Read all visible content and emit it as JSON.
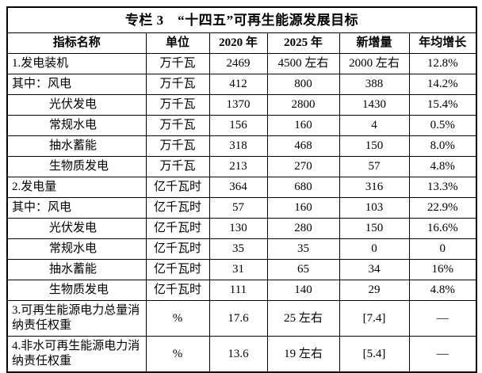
{
  "table": {
    "title": "专栏 3　“十四五”可再生能源发展目标",
    "headers": {
      "name": "指标名称",
      "unit": "单位",
      "y2020": "2020 年",
      "y2025": "2025 年",
      "added": "新增量",
      "growth": "年均增长"
    },
    "rows": [
      {
        "name": "1.发电装机",
        "unit": "万千瓦",
        "y2020": "2469",
        "y2025": "4500 左右",
        "added": "2000 左右",
        "growth": "12.8%"
      },
      {
        "name": "其中：风电",
        "unit": "万千瓦",
        "y2020": "412",
        "y2025": "800",
        "added": "388",
        "growth": "14.2%"
      },
      {
        "name": "光伏发电",
        "unit": "万千瓦",
        "y2020": "1370",
        "y2025": "2800",
        "added": "1430",
        "growth": "15.4%"
      },
      {
        "name": "常规水电",
        "unit": "万千瓦",
        "y2020": "156",
        "y2025": "160",
        "added": "4",
        "growth": "0.5%"
      },
      {
        "name": "抽水蓄能",
        "unit": "万千瓦",
        "y2020": "318",
        "y2025": "468",
        "added": "150",
        "growth": "8.0%"
      },
      {
        "name": "生物质发电",
        "unit": "万千瓦",
        "y2020": "213",
        "y2025": "270",
        "added": "57",
        "growth": "4.8%"
      },
      {
        "name": "2.发电量",
        "unit": "亿千瓦时",
        "y2020": "364",
        "y2025": "680",
        "added": "316",
        "growth": "13.3%"
      },
      {
        "name": "其中：风电",
        "unit": "亿千瓦时",
        "y2020": "57",
        "y2025": "160",
        "added": "103",
        "growth": "22.9%"
      },
      {
        "name": "光伏发电",
        "unit": "亿千瓦时",
        "y2020": "130",
        "y2025": "280",
        "added": "150",
        "growth": "16.6%"
      },
      {
        "name": "常规水电",
        "unit": "亿千瓦时",
        "y2020": "35",
        "y2025": "35",
        "added": "0",
        "growth": "0"
      },
      {
        "name": "抽水蓄能",
        "unit": "亿千瓦时",
        "y2020": "31",
        "y2025": "65",
        "added": "34",
        "growth": "16%"
      },
      {
        "name": "生物质发电",
        "unit": "亿千瓦时",
        "y2020": "111",
        "y2025": "140",
        "added": "29",
        "growth": "4.8%"
      },
      {
        "name": "3.可再生能源电力总量消纳责任权重",
        "unit": "%",
        "y2020": "17.6",
        "y2025": "25 左右",
        "added": "[7.4]",
        "growth": "—"
      },
      {
        "name": "4.非水可再生能源电力消纳责任权重",
        "unit": "%",
        "y2020": "13.6",
        "y2025": "19 左右",
        "added": "[5.4]",
        "growth": "—"
      }
    ]
  }
}
